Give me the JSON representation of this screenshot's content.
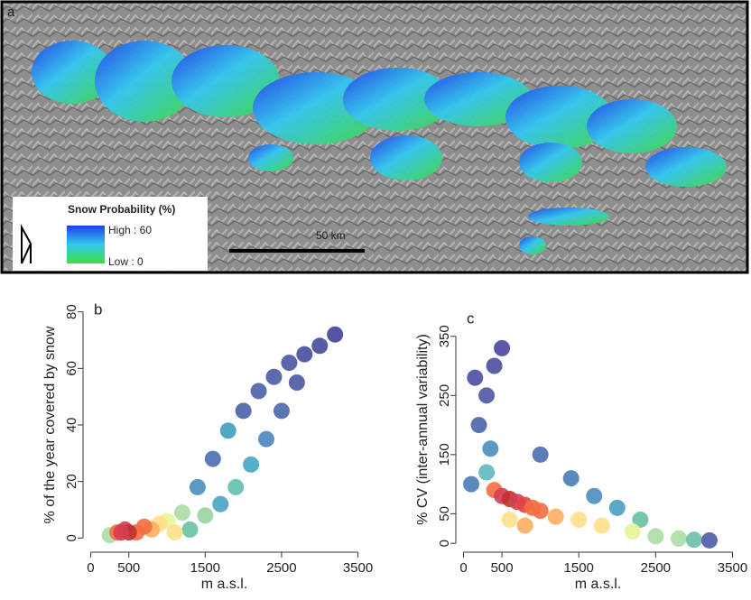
{
  "chart_data": [
    {
      "type": "map",
      "panel_label": "a",
      "legend_title": "Snow Probability (%)",
      "legend_high": "High : 60",
      "legend_low": "Low : 0",
      "scale_bar_label": "50 km",
      "legend_colors": [
        "#1f3fe8",
        "#33c8f2",
        "#3fdc3f"
      ]
    },
    {
      "type": "scatter",
      "panel_label": "b",
      "xlabel": "m a.s.l.",
      "ylabel": "% of the year covered by snow",
      "xlim": [
        -100,
        3600
      ],
      "ylim": [
        -5,
        85
      ],
      "xticks": [
        0,
        500,
        1500,
        2500,
        3500
      ],
      "yticks": [
        0,
        20,
        40,
        60,
        80
      ],
      "x": [
        2000,
        2200,
        2400,
        2600,
        2800,
        3000,
        3200,
        1800,
        1600,
        1400,
        2500,
        2300,
        2100,
        1900,
        1700,
        2700,
        1300,
        1500,
        1200,
        1000,
        900,
        800,
        700,
        1100,
        250,
        350,
        600,
        450,
        500,
        400
      ],
      "values": [
        45,
        52,
        57,
        62,
        65,
        68,
        72,
        38,
        28,
        18,
        45,
        35,
        26,
        18,
        12,
        55,
        3,
        8,
        9,
        6,
        5,
        3,
        4,
        2,
        1,
        2,
        2,
        3,
        2,
        2
      ],
      "point_colors": [
        "#4a5fa8",
        "#4b62aa",
        "#4a5aa5",
        "#4955a2",
        "#474e9c",
        "#45489a",
        "#434198",
        "#3f9fbd",
        "#4a6fb1",
        "#4a8fbf",
        "#4a66ad",
        "#4a86bc",
        "#45a9c0",
        "#5fc0b0",
        "#4aa2c2",
        "#4a58a4",
        "#66c2a5",
        "#9ad4a2",
        "#abdda4",
        "#e6f598",
        "#fee08b",
        "#fdae61",
        "#f46d43",
        "#fee08b",
        "#abdda4",
        "#f46d43",
        "#f46d43",
        "#d53e4f",
        "#c0312f",
        "#d53e4f"
      ]
    },
    {
      "type": "scatter",
      "panel_label": "c",
      "xlabel": "m a.s.l.",
      "ylabel": "% CV (inter-annual variability)",
      "xlim": [
        -100,
        3600
      ],
      "ylim": [
        -15,
        400
      ],
      "xticks": [
        0,
        500,
        1500,
        2500,
        3500
      ],
      "yticks": [
        0,
        50,
        150,
        250,
        350
      ],
      "x": [
        150,
        200,
        300,
        400,
        500,
        350,
        100,
        300,
        1000,
        1400,
        1700,
        2000,
        2300,
        2500,
        2800,
        3000,
        3200,
        2200,
        1800,
        1500,
        1200,
        600,
        800,
        1000,
        400,
        500,
        600,
        700,
        800,
        900
      ],
      "values": [
        280,
        200,
        250,
        300,
        330,
        160,
        100,
        120,
        150,
        110,
        80,
        60,
        40,
        12,
        8,
        6,
        5,
        20,
        30,
        40,
        45,
        40,
        30,
        55,
        90,
        80,
        75,
        70,
        65,
        60
      ],
      "point_colors": [
        "#4b4fa0",
        "#4a64ab",
        "#4b57a5",
        "#4b4fa0",
        "#48479c",
        "#4a8fbf",
        "#4a7db8",
        "#5fb8bf",
        "#4a6fb1",
        "#4a7db8",
        "#4a8fbf",
        "#4a9fbf",
        "#66c2a5",
        "#abdda4",
        "#abdda4",
        "#6bbfa9",
        "#4a5aa5",
        "#e6f598",
        "#fee08b",
        "#fee08b",
        "#fdae61",
        "#fee08b",
        "#fdae61",
        "#f46d43",
        "#f46d43",
        "#d53e4f",
        "#c0312f",
        "#d53e4f",
        "#e0463d",
        "#f46d43"
      ]
    }
  ]
}
